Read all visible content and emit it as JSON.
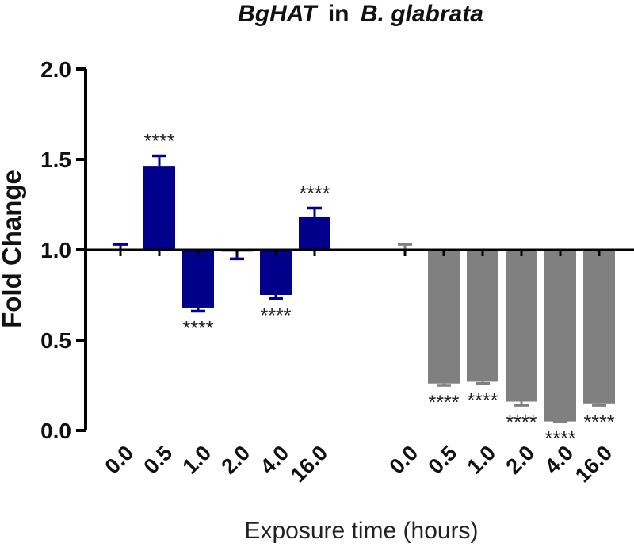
{
  "chart_data": {
    "type": "bar",
    "title_italic": "BgHAT",
    "title_rest": "in",
    "title_species": "B. glabrata",
    "xlabel": "Exposure time (hours)",
    "ylabel": "Fold Change",
    "ylim": [
      0,
      2.0
    ],
    "yticks": [
      "0.0",
      "0.5",
      "1.0",
      "1.5",
      "2.0"
    ],
    "baseline": 1.0,
    "series": [
      {
        "color": "#00008b",
        "categories": [
          "0.0",
          "0.5",
          "1.0",
          "2.0",
          "4.0",
          "16.0"
        ],
        "values": [
          1.0,
          1.46,
          0.68,
          0.99,
          0.75,
          1.18
        ],
        "errors": [
          0.03,
          0.06,
          0.02,
          0.04,
          0.02,
          0.05
        ],
        "significance": [
          "",
          "****",
          "****",
          "",
          "****",
          "****"
        ]
      },
      {
        "color": "#808080",
        "categories": [
          "0.0",
          "0.5",
          "1.0",
          "2.0",
          "4.0",
          "16.0"
        ],
        "values": [
          1.0,
          0.26,
          0.27,
          0.16,
          0.05,
          0.15
        ],
        "errors": [
          0.03,
          0.01,
          0.01,
          0.02,
          0.0,
          0.01
        ],
        "significance": [
          "",
          "****",
          "****",
          "****",
          "****",
          "****"
        ]
      }
    ]
  }
}
